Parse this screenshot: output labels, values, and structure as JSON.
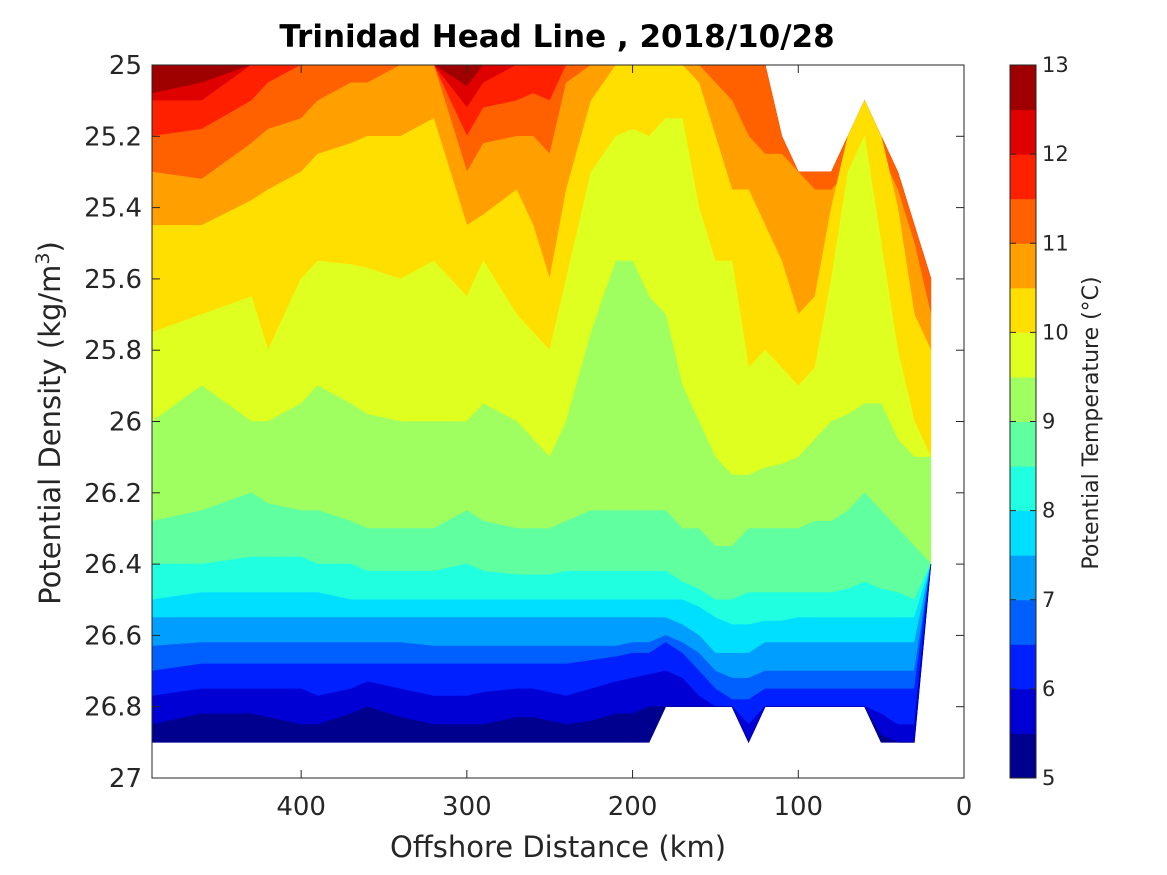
{
  "chart_data": {
    "type": "heatmap",
    "subtype": "filled-contour",
    "title": "Trinidad Head Line , 2018/10/28",
    "xlabel": "Offshore Distance (km)",
    "ylabel_main": "Potential Density (kg/m",
    "ylabel_sup": "3",
    "ylabel_end": ")",
    "xlim": [
      490,
      0
    ],
    "x_reversed": true,
    "ylim": [
      25,
      27
    ],
    "y_reversed": true,
    "x_ticks": [
      400,
      300,
      200,
      100,
      0
    ],
    "y_ticks": [
      "25",
      "25.2",
      "25.4",
      "25.6",
      "25.8",
      "26",
      "26.2",
      "26.4",
      "26.6",
      "26.8",
      "27"
    ],
    "colorbar": {
      "label": "Potential Temperature (°C)",
      "range": [
        5,
        13
      ],
      "ticks": [
        5,
        6,
        7,
        8,
        9,
        10,
        11,
        12,
        13
      ],
      "levels": [
        5,
        5.5,
        6,
        6.5,
        7,
        7.5,
        8,
        8.5,
        9,
        9.5,
        10,
        10.5,
        11,
        11.5,
        12,
        12.5,
        13
      ],
      "colors": [
        "#00008f",
        "#0000d5",
        "#0020ff",
        "#0060ff",
        "#009fff",
        "#00dfff",
        "#20ffdf",
        "#60ff9f",
        "#9fff60",
        "#dfff20",
        "#ffdf00",
        "#ff9f00",
        "#ff6000",
        "#ff2000",
        "#df0000",
        "#9f0000"
      ]
    },
    "stations_km": [
      490,
      460,
      430,
      420,
      400,
      390,
      370,
      360,
      340,
      320,
      300,
      290,
      270,
      260,
      250,
      240,
      225,
      210,
      200,
      190,
      180,
      170,
      160,
      150,
      140,
      130,
      120,
      110,
      100,
      90,
      80,
      70,
      60,
      50,
      40,
      30,
      20
    ],
    "bottom_sigma": [
      26.9,
      26.9,
      26.9,
      26.9,
      26.9,
      26.9,
      26.9,
      26.9,
      26.9,
      26.9,
      26.9,
      26.9,
      26.9,
      26.9,
      26.9,
      26.9,
      26.9,
      26.9,
      26.9,
      26.9,
      26.8,
      26.8,
      26.8,
      26.8,
      26.8,
      26.9,
      26.8,
      26.8,
      26.8,
      26.8,
      26.8,
      26.8,
      26.8,
      26.9,
      26.9,
      26.9,
      26.4
    ],
    "top_sigma": [
      25,
      25,
      25,
      25,
      25,
      25,
      25,
      25,
      25,
      25,
      25,
      25,
      25,
      25,
      25,
      25,
      25,
      25,
      25,
      25,
      25,
      25,
      25,
      25,
      25,
      25,
      25,
      25.2,
      25.3,
      25.3,
      25.3,
      25.2,
      25.1,
      25.2,
      25.3,
      25.45,
      25.6
    ],
    "isotherms": [
      {
        "level": 12.5,
        "sigma": [
          25.08,
          25.05,
          25.0,
          25.0,
          25.0,
          25.0,
          25.0,
          25.0,
          25.0,
          25.0,
          25.06,
          25.0,
          25.0,
          25.0,
          25.0,
          25.0,
          25.0,
          25.0,
          25.0,
          25.0,
          25.0,
          25.0,
          25.0,
          25.0,
          25.0,
          25.0,
          25.0,
          25.0,
          25.0,
          25.0,
          25.0,
          25.0,
          25.0,
          25.0,
          25.0,
          25.0,
          25.0
        ]
      },
      {
        "level": 12.0,
        "sigma": [
          25.1,
          25.1,
          25.0,
          25.0,
          25.0,
          25.0,
          25.0,
          25.0,
          25.0,
          25.0,
          25.12,
          25.05,
          25.0,
          25.0,
          25.0,
          25.0,
          25.0,
          25.0,
          25.0,
          25.0,
          25.0,
          25.0,
          25.0,
          25.0,
          25.0,
          25.0,
          25.0,
          25.0,
          25.0,
          25.0,
          25.0,
          25.0,
          25.0,
          25.0,
          25.0,
          25.0,
          25.0
        ]
      },
      {
        "level": 11.5,
        "sigma": [
          25.2,
          25.18,
          25.1,
          25.05,
          25.0,
          25.0,
          25.0,
          25.0,
          25.0,
          25.0,
          25.2,
          25.12,
          25.1,
          25.08,
          25.1,
          25.0,
          25.0,
          25.0,
          25.0,
          25.0,
          25.0,
          25.0,
          25.0,
          25.0,
          25.0,
          25.0,
          25.0,
          25.0,
          25.0,
          25.0,
          25.0,
          25.0,
          25.0,
          25.0,
          25.0,
          25.0,
          25.0
        ]
      },
      {
        "level": 11.0,
        "sigma": [
          25.3,
          25.32,
          25.22,
          25.18,
          25.15,
          25.1,
          25.05,
          25.05,
          25.0,
          25.0,
          25.3,
          25.22,
          25.2,
          25.2,
          25.25,
          25.05,
          25.0,
          25.0,
          25.0,
          25.0,
          25.0,
          25.0,
          25.0,
          25.05,
          25.1,
          25.2,
          25.25,
          25.25,
          25.3,
          25.35,
          25.35,
          25.3,
          25.1,
          25.25,
          25.35,
          25.5,
          25.7
        ]
      },
      {
        "level": 10.5,
        "sigma": [
          25.45,
          25.45,
          25.38,
          25.35,
          25.3,
          25.25,
          25.22,
          25.2,
          25.2,
          25.15,
          25.45,
          25.42,
          25.35,
          25.45,
          25.6,
          25.35,
          25.1,
          25.0,
          25.0,
          25.0,
          25.0,
          25.0,
          25.05,
          25.2,
          25.35,
          25.35,
          25.45,
          25.55,
          25.7,
          25.65,
          25.4,
          25.2,
          25.1,
          25.2,
          25.4,
          25.7,
          25.8
        ]
      },
      {
        "level": 10.0,
        "sigma": [
          25.75,
          25.7,
          25.65,
          25.8,
          25.6,
          25.55,
          25.56,
          25.57,
          25.6,
          25.55,
          25.65,
          25.55,
          25.7,
          25.75,
          25.8,
          25.6,
          25.3,
          25.2,
          25.18,
          25.2,
          25.15,
          25.15,
          25.4,
          25.55,
          25.55,
          25.85,
          25.8,
          25.85,
          25.9,
          25.85,
          25.6,
          25.3,
          25.2,
          25.5,
          25.8,
          26.0,
          26.1
        ]
      },
      {
        "level": 9.5,
        "sigma": [
          26.0,
          25.9,
          26.0,
          26.0,
          25.95,
          25.9,
          25.95,
          25.98,
          26.0,
          26.0,
          26.0,
          25.95,
          26.0,
          26.05,
          26.1,
          26.0,
          25.75,
          25.55,
          25.55,
          25.65,
          25.7,
          25.9,
          26.0,
          26.1,
          26.15,
          26.15,
          26.13,
          26.12,
          26.1,
          26.05,
          26.0,
          25.98,
          25.95,
          25.95,
          26.05,
          26.1,
          26.1
        ]
      },
      {
        "level": 9.0,
        "sigma": [
          26.28,
          26.25,
          26.2,
          26.23,
          26.25,
          26.25,
          26.28,
          26.3,
          26.3,
          26.3,
          26.25,
          26.28,
          26.3,
          26.3,
          26.3,
          26.28,
          26.25,
          26.25,
          26.25,
          26.25,
          26.25,
          26.3,
          26.3,
          26.35,
          26.35,
          26.3,
          26.3,
          26.3,
          26.3,
          26.28,
          26.28,
          26.25,
          26.2,
          26.25,
          26.3,
          26.35,
          26.4
        ]
      },
      {
        "level": 8.5,
        "sigma": [
          26.4,
          26.4,
          26.38,
          26.38,
          26.38,
          26.4,
          26.4,
          26.42,
          26.42,
          26.42,
          26.4,
          26.42,
          26.43,
          26.43,
          26.43,
          26.42,
          26.42,
          26.42,
          26.42,
          26.42,
          26.42,
          26.45,
          26.47,
          26.5,
          26.5,
          26.48,
          26.48,
          26.48,
          26.48,
          26.48,
          26.48,
          26.47,
          26.45,
          26.47,
          26.48,
          26.5,
          26.5
        ]
      },
      {
        "level": 8.0,
        "sigma": [
          26.5,
          26.48,
          26.48,
          26.48,
          26.48,
          26.48,
          26.5,
          26.5,
          26.5,
          26.5,
          26.5,
          26.5,
          26.5,
          26.5,
          26.5,
          26.5,
          26.5,
          26.5,
          26.5,
          26.5,
          26.5,
          26.5,
          26.52,
          26.55,
          26.57,
          26.57,
          26.56,
          26.56,
          26.55,
          26.55,
          26.55,
          26.55,
          26.55,
          26.55,
          26.55,
          26.55,
          26.55
        ]
      },
      {
        "level": 7.5,
        "sigma": [
          26.55,
          26.55,
          26.55,
          26.55,
          26.55,
          26.55,
          26.55,
          26.55,
          26.55,
          26.55,
          26.55,
          26.55,
          26.55,
          26.55,
          26.55,
          26.55,
          26.55,
          26.55,
          26.55,
          26.55,
          26.55,
          26.57,
          26.6,
          26.65,
          26.65,
          26.65,
          26.62,
          26.62,
          26.62,
          26.62,
          26.62,
          26.62,
          26.62,
          26.62,
          26.62,
          26.62,
          26.62
        ]
      },
      {
        "level": 7.0,
        "sigma": [
          26.63,
          26.62,
          26.62,
          26.62,
          26.62,
          26.62,
          26.62,
          26.62,
          26.62,
          26.63,
          26.63,
          26.63,
          26.63,
          26.63,
          26.63,
          26.63,
          26.63,
          26.63,
          26.62,
          26.62,
          26.6,
          26.62,
          26.65,
          26.7,
          26.72,
          26.72,
          26.7,
          26.7,
          26.7,
          26.7,
          26.7,
          26.7,
          26.7,
          26.7,
          26.7,
          26.7,
          26.7
        ]
      },
      {
        "level": 6.5,
        "sigma": [
          26.7,
          26.68,
          26.68,
          26.68,
          26.68,
          26.68,
          26.68,
          26.68,
          26.68,
          26.68,
          26.68,
          26.68,
          26.68,
          26.68,
          26.68,
          26.68,
          26.67,
          26.66,
          26.65,
          26.65,
          26.62,
          26.65,
          26.7,
          26.75,
          26.78,
          26.78,
          26.75,
          26.75,
          26.75,
          26.75,
          26.75,
          26.75,
          26.75,
          26.75,
          26.75,
          26.75,
          26.75
        ]
      },
      {
        "level": 6.0,
        "sigma": [
          26.77,
          26.75,
          26.75,
          26.75,
          26.75,
          26.77,
          26.75,
          26.73,
          26.75,
          26.77,
          26.77,
          26.76,
          26.75,
          26.75,
          26.76,
          26.77,
          26.75,
          26.73,
          26.72,
          26.71,
          26.7,
          26.72,
          26.77,
          26.8,
          26.82,
          26.85,
          26.82,
          26.82,
          26.82,
          26.82,
          26.82,
          26.82,
          26.82,
          26.82,
          26.85,
          26.85,
          26.85
        ]
      },
      {
        "level": 5.5,
        "sigma": [
          26.85,
          26.82,
          26.82,
          26.83,
          26.85,
          26.85,
          26.82,
          26.8,
          26.83,
          26.85,
          26.85,
          26.85,
          26.83,
          26.83,
          26.84,
          26.85,
          26.84,
          26.82,
          26.82,
          26.8,
          26.8,
          26.8,
          26.85,
          26.85,
          26.88,
          26.9,
          26.88,
          26.88,
          26.88,
          26.88,
          26.88,
          26.88,
          26.88,
          26.88,
          26.9,
          26.9,
          26.9
        ]
      }
    ]
  }
}
